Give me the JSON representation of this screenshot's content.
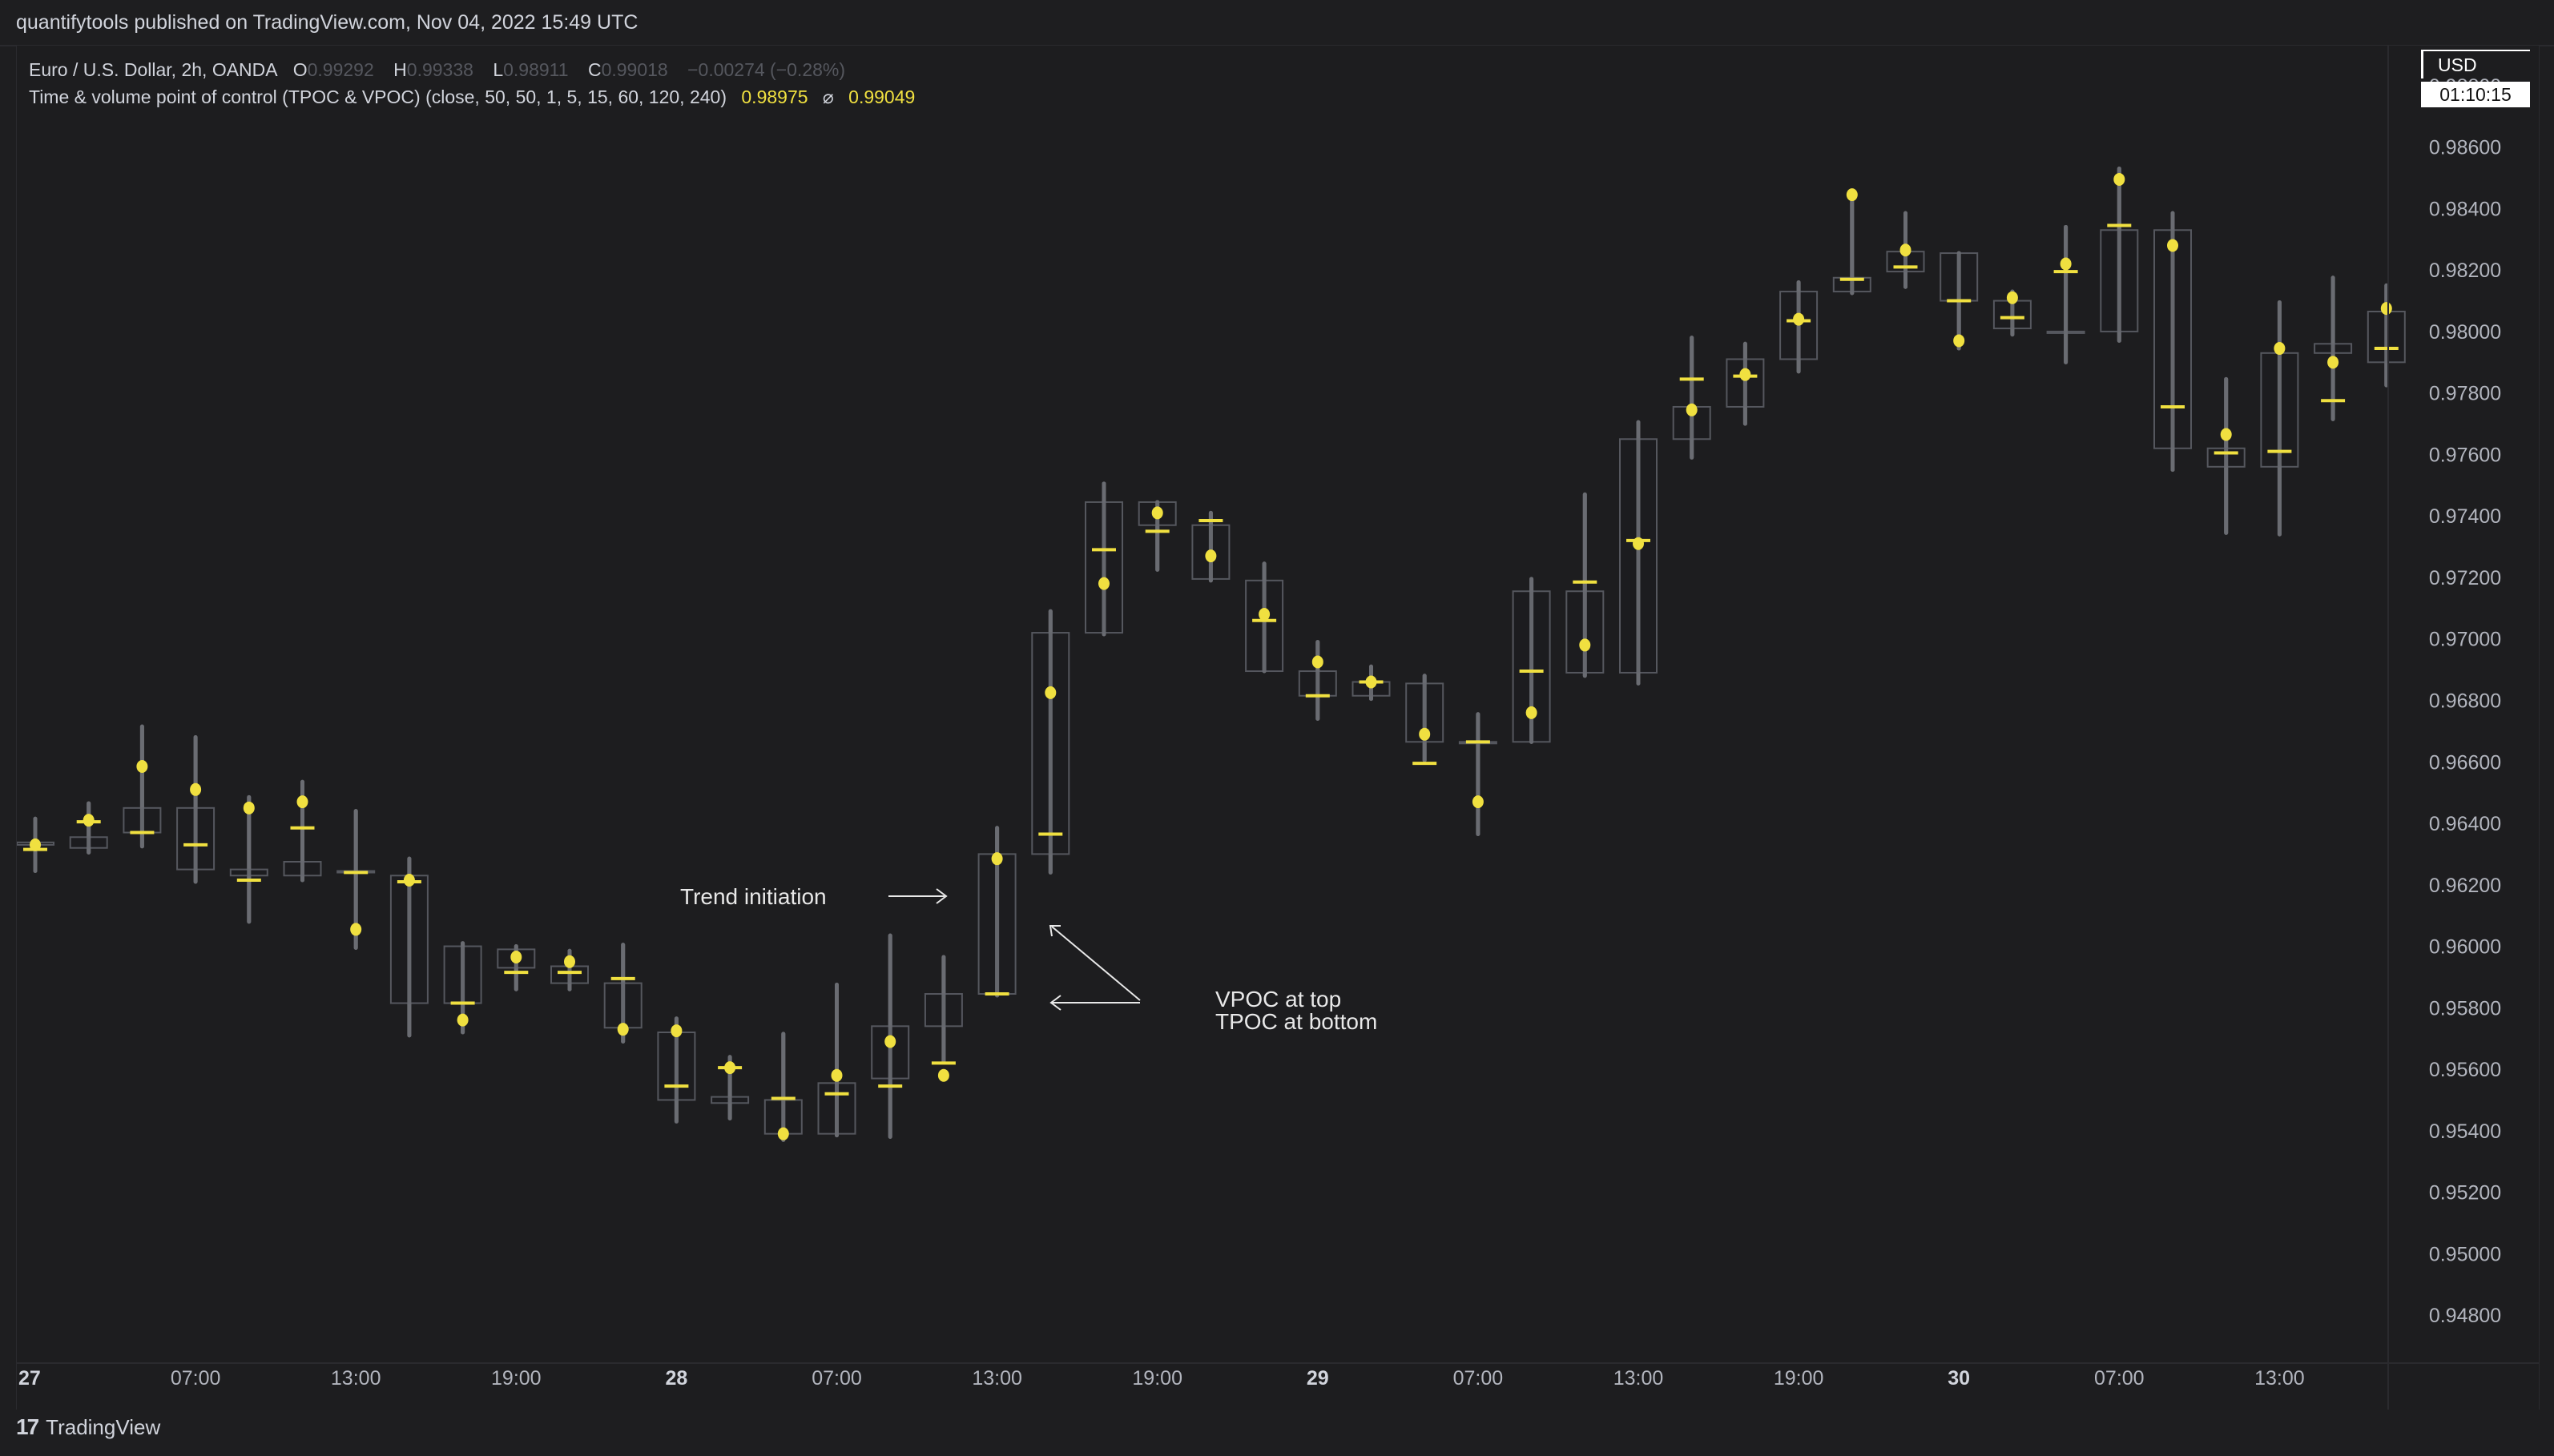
{
  "header": {
    "published": "quantifytools published on TradingView.com, Nov 04, 2022 15:49 UTC"
  },
  "legend": {
    "symbol": "Euro / U.S. Dollar, 2h, OANDA",
    "o_label": "O",
    "o_value": "0.99292",
    "h_label": "H",
    "h_value": "0.99338",
    "l_label": "L",
    "l_value": "0.98911",
    "c_label": "C",
    "c_value": "0.99018",
    "change": "−0.00274 (−0.28%)",
    "indicator": "Time & volume point of control (TPOC & VPOC) (close, 50, 50, 1, 5, 15, 60, 120, 240)",
    "indicator_value1": "0.98975",
    "indicator_sep": "⌀",
    "indicator_value2": "0.99049"
  },
  "price_axis": {
    "currency": "USD",
    "countdown": "01:10:15"
  },
  "footer": {
    "brand_logo": "17",
    "brand_name": "TradingView"
  },
  "colors": {
    "background": "#1d1d1f",
    "candle_body": "#55575e",
    "wick": "#6a6c72",
    "tpoc_marker": "#f0e040",
    "vpoc_marker": "#f0e040",
    "text": "#d1d4dc"
  },
  "chart_data": {
    "type": "candlestick",
    "title": "",
    "y_axis": {
      "ticks": [
        "0.98800",
        "0.98600",
        "0.98400",
        "0.98200",
        "0.98000",
        "0.97800",
        "0.97600",
        "0.97400",
        "0.97200",
        "0.97000",
        "0.96800",
        "0.96600",
        "0.96400",
        "0.96200",
        "0.96000",
        "0.95800",
        "0.95600",
        "0.95400",
        "0.95200",
        "0.95000",
        "0.94800"
      ],
      "range": [
        0.9467,
        0.9893
      ]
    },
    "x_axis": {
      "ticks": [
        {
          "label": "27",
          "bar": 0,
          "bold": true
        },
        {
          "label": "07:00",
          "bar": 3,
          "bold": false
        },
        {
          "label": "13:00",
          "bar": 6,
          "bold": false
        },
        {
          "label": "19:00",
          "bar": 9,
          "bold": false
        },
        {
          "label": "28",
          "bar": 12,
          "bold": true
        },
        {
          "label": "07:00",
          "bar": 15,
          "bold": false
        },
        {
          "label": "13:00",
          "bar": 18,
          "bold": false
        },
        {
          "label": "19:00",
          "bar": 21,
          "bold": false
        },
        {
          "label": "29",
          "bar": 24,
          "bold": true
        },
        {
          "label": "07:00",
          "bar": 27,
          "bold": false
        },
        {
          "label": "13:00",
          "bar": 30,
          "bold": false
        },
        {
          "label": "19:00",
          "bar": 33,
          "bold": false
        },
        {
          "label": "30",
          "bar": 36,
          "bold": true
        },
        {
          "label": "07:00",
          "bar": 39,
          "bold": false
        },
        {
          "label": "13:00",
          "bar": 42,
          "bold": false
        }
      ]
    },
    "legend_note": "dot = VPOC, dash = TPOC",
    "candles": [
      {
        "o": 0.96338,
        "h": 0.96415,
        "l": 0.96245,
        "c": 0.9633,
        "vpoc": 0.9633,
        "tpoc": 0.96315
      },
      {
        "o": 0.9632,
        "h": 0.96465,
        "l": 0.96305,
        "c": 0.96355,
        "vpoc": 0.9641,
        "tpoc": 0.96405
      },
      {
        "o": 0.9637,
        "h": 0.96715,
        "l": 0.96325,
        "c": 0.9645,
        "vpoc": 0.96585,
        "tpoc": 0.9637
      },
      {
        "o": 0.9645,
        "h": 0.9668,
        "l": 0.9621,
        "c": 0.9625,
        "vpoc": 0.9651,
        "tpoc": 0.9633
      },
      {
        "o": 0.9625,
        "h": 0.96485,
        "l": 0.9608,
        "c": 0.9623,
        "vpoc": 0.9645,
        "tpoc": 0.96215
      },
      {
        "o": 0.9623,
        "h": 0.96535,
        "l": 0.96215,
        "c": 0.96275,
        "vpoc": 0.9647,
        "tpoc": 0.96385
      },
      {
        "o": 0.96245,
        "h": 0.9644,
        "l": 0.95995,
        "c": 0.9624,
        "vpoc": 0.96055,
        "tpoc": 0.9624
      },
      {
        "o": 0.9623,
        "h": 0.96285,
        "l": 0.9571,
        "c": 0.95815,
        "vpoc": 0.96215,
        "tpoc": 0.9621
      },
      {
        "o": 0.96,
        "h": 0.9601,
        "l": 0.9572,
        "c": 0.95815,
        "vpoc": 0.9576,
        "tpoc": 0.95815
      },
      {
        "o": 0.9593,
        "h": 0.96,
        "l": 0.9586,
        "c": 0.9599,
        "vpoc": 0.95965,
        "tpoc": 0.95915
      },
      {
        "o": 0.95935,
        "h": 0.95985,
        "l": 0.9586,
        "c": 0.9588,
        "vpoc": 0.9595,
        "tpoc": 0.95915
      },
      {
        "o": 0.9588,
        "h": 0.96005,
        "l": 0.9569,
        "c": 0.95735,
        "vpoc": 0.9573,
        "tpoc": 0.95895
      },
      {
        "o": 0.9572,
        "h": 0.95765,
        "l": 0.9543,
        "c": 0.955,
        "vpoc": 0.95725,
        "tpoc": 0.95545
      },
      {
        "o": 0.9551,
        "h": 0.9564,
        "l": 0.9544,
        "c": 0.9549,
        "vpoc": 0.95605,
        "tpoc": 0.95605
      },
      {
        "o": 0.955,
        "h": 0.95715,
        "l": 0.9537,
        "c": 0.9539,
        "vpoc": 0.9539,
        "tpoc": 0.95505
      },
      {
        "o": 0.9539,
        "h": 0.95875,
        "l": 0.95385,
        "c": 0.95555,
        "vpoc": 0.9558,
        "tpoc": 0.9552
      },
      {
        "o": 0.9557,
        "h": 0.96035,
        "l": 0.9538,
        "c": 0.9574,
        "vpoc": 0.9569,
        "tpoc": 0.95545
      },
      {
        "o": 0.9574,
        "h": 0.95965,
        "l": 0.95625,
        "c": 0.95845,
        "vpoc": 0.9558,
        "tpoc": 0.9562
      },
      {
        "o": 0.95845,
        "h": 0.96385,
        "l": 0.9584,
        "c": 0.963,
        "vpoc": 0.96285,
        "tpoc": 0.95845
      },
      {
        "o": 0.963,
        "h": 0.9709,
        "l": 0.9624,
        "c": 0.9702,
        "vpoc": 0.96825,
        "tpoc": 0.96365
      },
      {
        "o": 0.9702,
        "h": 0.97505,
        "l": 0.97015,
        "c": 0.97445,
        "vpoc": 0.9718,
        "tpoc": 0.9729
      },
      {
        "o": 0.97445,
        "h": 0.97445,
        "l": 0.97225,
        "c": 0.9737,
        "vpoc": 0.9741,
        "tpoc": 0.9735
      },
      {
        "o": 0.9737,
        "h": 0.9741,
        "l": 0.9719,
        "c": 0.97195,
        "vpoc": 0.9727,
        "tpoc": 0.97385
      },
      {
        "o": 0.9719,
        "h": 0.97245,
        "l": 0.96895,
        "c": 0.96895,
        "vpoc": 0.9708,
        "tpoc": 0.9706
      },
      {
        "o": 0.96895,
        "h": 0.9699,
        "l": 0.9674,
        "c": 0.96815,
        "vpoc": 0.96925,
        "tpoc": 0.96815
      },
      {
        "o": 0.96815,
        "h": 0.9691,
        "l": 0.96805,
        "c": 0.9686,
        "vpoc": 0.9686,
        "tpoc": 0.9686
      },
      {
        "o": 0.96855,
        "h": 0.9688,
        "l": 0.96605,
        "c": 0.96665,
        "vpoc": 0.9669,
        "tpoc": 0.96595
      },
      {
        "o": 0.96665,
        "h": 0.96755,
        "l": 0.96365,
        "c": 0.96665,
        "vpoc": 0.9647,
        "tpoc": 0.96665
      },
      {
        "o": 0.96665,
        "h": 0.97195,
        "l": 0.96665,
        "c": 0.97155,
        "vpoc": 0.9676,
        "tpoc": 0.96895
      },
      {
        "o": 0.9689,
        "h": 0.9747,
        "l": 0.9688,
        "c": 0.97155,
        "vpoc": 0.9698,
        "tpoc": 0.97185
      },
      {
        "o": 0.9689,
        "h": 0.97705,
        "l": 0.96855,
        "c": 0.9765,
        "vpoc": 0.9731,
        "tpoc": 0.9732
      },
      {
        "o": 0.9765,
        "h": 0.9798,
        "l": 0.9759,
        "c": 0.97755,
        "vpoc": 0.97745,
        "tpoc": 0.97845
      },
      {
        "o": 0.97755,
        "h": 0.9796,
        "l": 0.977,
        "c": 0.9791,
        "vpoc": 0.9786,
        "tpoc": 0.97855
      },
      {
        "o": 0.9791,
        "h": 0.9816,
        "l": 0.9787,
        "c": 0.9813,
        "vpoc": 0.9804,
        "tpoc": 0.98035
      },
      {
        "o": 0.9813,
        "h": 0.98445,
        "l": 0.98125,
        "c": 0.98175,
        "vpoc": 0.98445,
        "tpoc": 0.9817
      },
      {
        "o": 0.98195,
        "h": 0.98385,
        "l": 0.98145,
        "c": 0.9826,
        "vpoc": 0.98265,
        "tpoc": 0.9821
      },
      {
        "o": 0.98255,
        "h": 0.98255,
        "l": 0.97945,
        "c": 0.981,
        "vpoc": 0.9797,
        "tpoc": 0.981
      },
      {
        "o": 0.981,
        "h": 0.9813,
        "l": 0.9799,
        "c": 0.9801,
        "vpoc": 0.9811,
        "tpoc": 0.98045
      },
      {
        "o": 0.98,
        "h": 0.9834,
        "l": 0.979,
        "c": 0.98,
        "vpoc": 0.9822,
        "tpoc": 0.98195
      },
      {
        "o": 0.98,
        "h": 0.9853,
        "l": 0.9797,
        "c": 0.9833,
        "vpoc": 0.98495,
        "tpoc": 0.98345
      },
      {
        "o": 0.9833,
        "h": 0.98385,
        "l": 0.9755,
        "c": 0.9762,
        "vpoc": 0.9828,
        "tpoc": 0.97755
      },
      {
        "o": 0.9762,
        "h": 0.97845,
        "l": 0.97345,
        "c": 0.9756,
        "vpoc": 0.97665,
        "tpoc": 0.97605
      },
      {
        "o": 0.9756,
        "h": 0.98095,
        "l": 0.9734,
        "c": 0.9793,
        "vpoc": 0.97945,
        "tpoc": 0.9761
      },
      {
        "o": 0.9793,
        "h": 0.98175,
        "l": 0.97715,
        "c": 0.9796,
        "vpoc": 0.979,
        "tpoc": 0.97775
      },
      {
        "o": 0.979,
        "h": 0.9815,
        "l": 0.97825,
        "c": 0.98065,
        "vpoc": 0.98075,
        "tpoc": 0.97945
      }
    ],
    "annotations": [
      {
        "text": "Trend initiation"
      },
      {
        "text": "VPOC at top"
      },
      {
        "text": "TPOC at bottom"
      }
    ]
  }
}
